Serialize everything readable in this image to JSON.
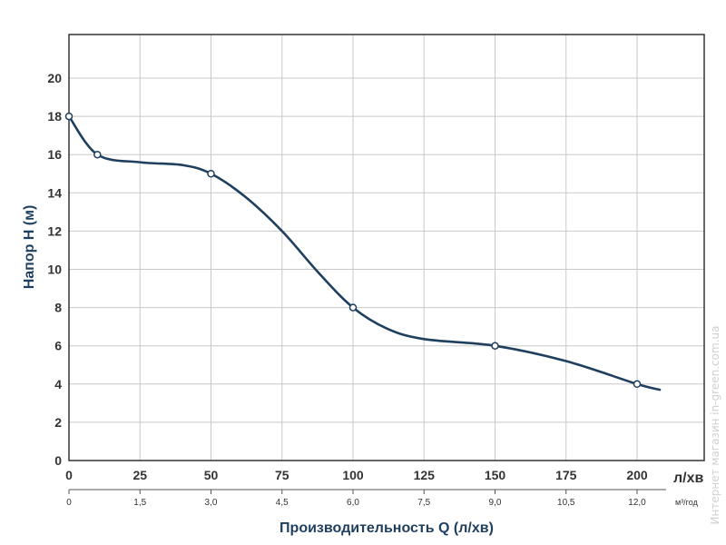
{
  "colors": {
    "curve": "#1f3f5f",
    "axis_title": "#1f3f5f",
    "grid": "#c8c8c8",
    "frame": "#333333"
  },
  "watermark": "Интернет магазин  in-green.com.ua",
  "chart_data": {
    "type": "line",
    "title": "",
    "xlabel": "Производительность Q (л/хв)",
    "ylabel": "Напор H (м)",
    "x_unit": "л/хв",
    "x2_unit": "м³/год",
    "xlim": [
      0,
      225
    ],
    "ylim": [
      0,
      22
    ],
    "x_ticks": [
      "0",
      "25",
      "50",
      "75",
      "100",
      "125",
      "150",
      "175",
      "200"
    ],
    "x2_ticks": [
      "0",
      "1,5",
      "3,0",
      "4,5",
      "6,0",
      "7,5",
      "9,0",
      "10,5",
      "12,0"
    ],
    "y_ticks": [
      "0",
      "2",
      "4",
      "6",
      "8",
      "10",
      "12",
      "14",
      "16",
      "18",
      "20"
    ],
    "grid": true,
    "series": [
      {
        "markers": [
          {
            "x": 0,
            "y": 18
          },
          {
            "x": 10,
            "y": 16
          },
          {
            "x": 50,
            "y": 15
          },
          {
            "x": 100,
            "y": 8
          },
          {
            "x": 150,
            "y": 6
          },
          {
            "x": 200,
            "y": 4
          }
        ],
        "curve": [
          {
            "x": 0,
            "y": 18
          },
          {
            "x": 10,
            "y": 16
          },
          {
            "x": 25,
            "y": 15.6
          },
          {
            "x": 40,
            "y": 15.45
          },
          {
            "x": 50,
            "y": 15
          },
          {
            "x": 62,
            "y": 13.8
          },
          {
            "x": 75,
            "y": 12
          },
          {
            "x": 88,
            "y": 9.8
          },
          {
            "x": 100,
            "y": 8
          },
          {
            "x": 112,
            "y": 6.9
          },
          {
            "x": 125,
            "y": 6.35
          },
          {
            "x": 150,
            "y": 6
          },
          {
            "x": 175,
            "y": 5.2
          },
          {
            "x": 200,
            "y": 4
          },
          {
            "x": 208,
            "y": 3.7
          }
        ]
      }
    ]
  }
}
